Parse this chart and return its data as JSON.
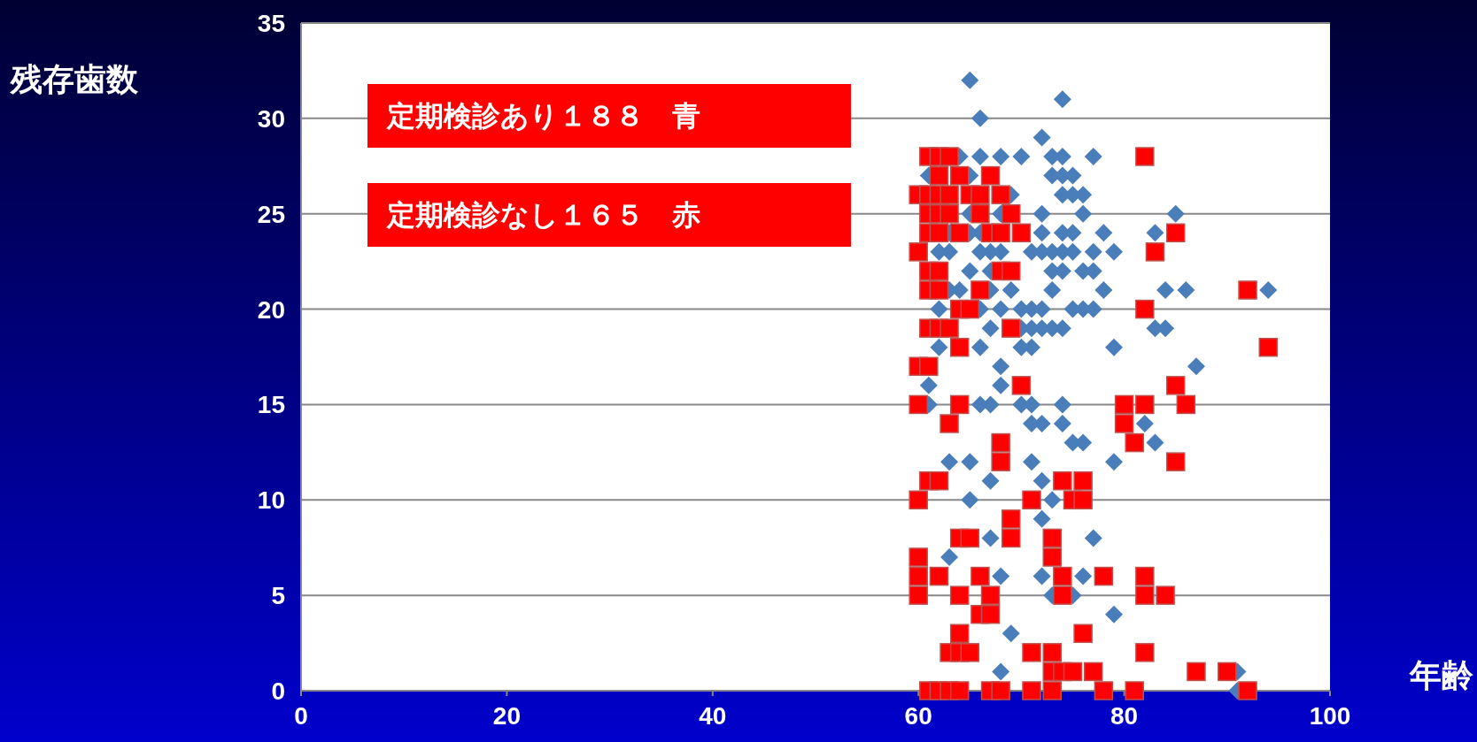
{
  "chart_data": {
    "type": "scatter",
    "xlabel": "年齢",
    "ylabel": "残存歯数",
    "xlim": [
      0,
      100
    ],
    "ylim": [
      0,
      35
    ],
    "xticks": [
      0,
      20,
      40,
      60,
      80,
      100
    ],
    "yticks": [
      0,
      5,
      10,
      15,
      20,
      25,
      30,
      35
    ],
    "grid": "y",
    "annotations": [
      "定期検診あり１８８　青",
      "定期検診なし１６５　赤"
    ],
    "series": [
      {
        "color": "#4a7ebb",
        "marker": "diamond",
        "x": [
          65,
          74,
          66,
          72,
          64,
          66,
          68,
          70,
          73,
          74,
          77,
          61,
          65,
          73,
          74,
          75,
          69,
          74,
          75,
          76,
          65,
          68,
          72,
          76,
          85,
          63,
          65,
          66,
          72,
          74,
          75,
          78,
          83,
          62,
          63,
          66,
          67,
          68,
          71,
          72,
          73,
          74,
          75,
          77,
          79,
          65,
          67,
          73,
          74,
          76,
          77,
          63,
          64,
          67,
          69,
          73,
          78,
          84,
          86,
          94,
          62,
          66,
          68,
          70,
          71,
          72,
          75,
          76,
          77,
          67,
          70,
          71,
          72,
          73,
          74,
          83,
          84,
          62,
          66,
          70,
          71,
          79,
          68,
          87,
          61,
          68,
          61,
          66,
          67,
          70,
          71,
          74,
          71,
          72,
          74,
          82,
          75,
          76,
          83,
          63,
          65,
          71,
          79,
          67,
          72,
          65,
          73,
          72,
          67,
          77,
          63,
          68,
          72,
          76,
          73,
          75,
          79,
          69,
          68,
          91,
          91
        ],
        "values": [
          32,
          31,
          30,
          29,
          28,
          28,
          28,
          28,
          28,
          28,
          28,
          27,
          27,
          27,
          27,
          27,
          26,
          26,
          26,
          26,
          25,
          25,
          25,
          25,
          25,
          24,
          24,
          24,
          24,
          24,
          24,
          24,
          24,
          23,
          23,
          23,
          23,
          23,
          23,
          23,
          23,
          23,
          23,
          23,
          23,
          22,
          22,
          22,
          22,
          22,
          22,
          21,
          21,
          21,
          21,
          21,
          21,
          21,
          21,
          21,
          20,
          20,
          20,
          20,
          20,
          20,
          20,
          20,
          20,
          19,
          19,
          19,
          19,
          19,
          19,
          19,
          19,
          18,
          18,
          18,
          18,
          18,
          17,
          17,
          16,
          16,
          15,
          15,
          15,
          15,
          15,
          15,
          14,
          14,
          14,
          14,
          13,
          13,
          13,
          12,
          12,
          12,
          12,
          11,
          11,
          10,
          10,
          9,
          8,
          8,
          7,
          6,
          6,
          6,
          5,
          5,
          4,
          3,
          1,
          1,
          0
        ]
      },
      {
        "color": "#ff0000",
        "marker": "square",
        "x": [
          61,
          62,
          63,
          82,
          62,
          64,
          67,
          60,
          61,
          62,
          63,
          65,
          66,
          68,
          61,
          62,
          63,
          66,
          69,
          61,
          62,
          64,
          67,
          68,
          70,
          85,
          60,
          83,
          61,
          62,
          68,
          69,
          61,
          62,
          66,
          92,
          64,
          65,
          82,
          61,
          62,
          63,
          69,
          64,
          94,
          60,
          61,
          70,
          85,
          60,
          64,
          80,
          82,
          86,
          63,
          80,
          68,
          81,
          68,
          85,
          61,
          62,
          74,
          76,
          60,
          71,
          75,
          76,
          69,
          64,
          65,
          69,
          73,
          60,
          73,
          60,
          62,
          66,
          74,
          78,
          82,
          60,
          64,
          67,
          74,
          82,
          84,
          66,
          67,
          64,
          76,
          63,
          64,
          65,
          71,
          73,
          82,
          73,
          74,
          75,
          77,
          87,
          90,
          61,
          62,
          63,
          64,
          67,
          68,
          71,
          73,
          78,
          81,
          92
        ],
        "values": [
          28,
          28,
          28,
          28,
          27,
          27,
          27,
          26,
          26,
          26,
          26,
          26,
          26,
          26,
          25,
          25,
          25,
          25,
          25,
          24,
          24,
          24,
          24,
          24,
          24,
          24,
          23,
          23,
          22,
          22,
          22,
          22,
          21,
          21,
          21,
          21,
          20,
          20,
          20,
          19,
          19,
          19,
          19,
          18,
          18,
          17,
          17,
          16,
          16,
          15,
          15,
          15,
          15,
          15,
          14,
          14,
          13,
          13,
          12,
          12,
          11,
          11,
          11,
          11,
          10,
          10,
          10,
          10,
          9,
          8,
          8,
          8,
          8,
          7,
          7,
          6,
          6,
          6,
          6,
          6,
          6,
          5,
          5,
          5,
          5,
          5,
          5,
          4,
          4,
          3,
          3,
          2,
          2,
          2,
          2,
          2,
          2,
          1,
          1,
          1,
          1,
          1,
          1,
          0,
          0,
          0,
          0,
          0,
          0,
          0,
          0,
          0,
          0,
          0
        ]
      }
    ]
  }
}
